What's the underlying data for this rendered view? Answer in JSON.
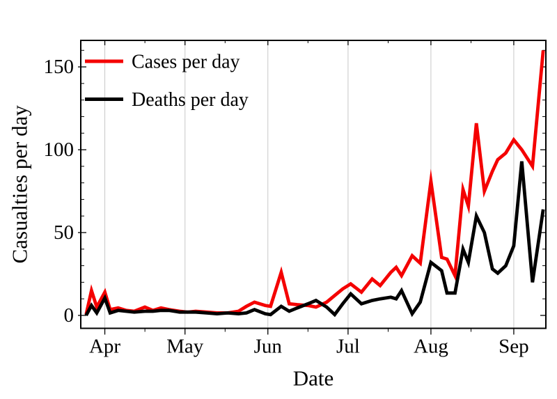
{
  "chart_data": {
    "type": "line",
    "title": "",
    "xlabel": "Date",
    "ylabel": "Casualties per day",
    "x_tick_labels": [
      "Apr",
      "May",
      "Jun",
      "Jul",
      "Aug",
      "Sep"
    ],
    "y_major_ticks": [
      0,
      50,
      100,
      150
    ],
    "y_minor_step": 10,
    "ylim": [
      -7.8,
      166
    ],
    "x_range": [
      "Mar 23",
      "Sep 13"
    ],
    "total_days": 174,
    "month_start_days": [
      9,
      39,
      70,
      100,
      131,
      162
    ],
    "x_minor_tick_days": [
      24,
      54,
      85,
      115,
      146
    ],
    "grid": "vertical-gridlines-at-months",
    "legend_position": "top-left-inside",
    "colors": {
      "cases": "#f40000",
      "deaths": "#000000",
      "gridline": "#c8c8c8",
      "frame": "#000000",
      "background": "#ffffff"
    },
    "dates": [
      "Mar 25",
      "Mar 27",
      "Mar 29",
      "Apr 1",
      "Apr 3",
      "Apr 6",
      "Apr 9",
      "Apr 12",
      "Apr 16",
      "Apr 19",
      "Apr 22",
      "Apr 25",
      "Apr 29",
      "May 2",
      "May 5",
      "May 9",
      "May 13",
      "May 17",
      "May 21",
      "May 24",
      "May 27",
      "May 31",
      "Jun 2",
      "Jun 6",
      "Jun 9",
      "Jun 12",
      "Jun 16",
      "Jun 19",
      "Jun 23",
      "Jun 26",
      "Jun 29",
      "Jul 2",
      "Jul 6",
      "Jul 10",
      "Jul 13",
      "Jul 17",
      "Jul 19",
      "Jul 21",
      "Jul 25",
      "Jul 28",
      "Aug 1",
      "Aug 5",
      "Aug 7",
      "Aug 10",
      "Aug 13",
      "Aug 15",
      "Aug 18",
      "Aug 21",
      "Aug 24",
      "Aug 26",
      "Aug 29",
      "Sep 1",
      "Sep 4",
      "Sep 8",
      "Sep 12"
    ],
    "day_offsets": [
      2,
      4,
      6,
      9,
      11,
      14,
      17,
      20,
      24,
      27,
      30,
      33,
      37,
      40,
      43,
      47,
      51,
      55,
      59,
      62,
      65,
      69,
      71,
      75,
      78,
      81,
      85,
      88,
      92,
      95,
      98,
      101,
      105,
      109,
      112,
      116,
      118,
      120,
      124,
      127,
      131,
      135,
      137,
      140,
      143,
      145,
      148,
      151,
      154,
      156,
      159,
      162,
      165,
      169,
      173
    ],
    "series": [
      {
        "name": "Cases per day",
        "color": "#f40000",
        "values": [
          0.5,
          15,
          5,
          14,
          3.5,
          4.5,
          3,
          2.5,
          5,
          3,
          4.5,
          3.5,
          2.5,
          2,
          2.5,
          2,
          1.5,
          1.5,
          2.5,
          5.5,
          8,
          6,
          5.5,
          26,
          7,
          6.5,
          6,
          5,
          8,
          12,
          16,
          19,
          14,
          22,
          18,
          26,
          29,
          24,
          36,
          31.5,
          81,
          35,
          34,
          24,
          76,
          66,
          116,
          75,
          87,
          94,
          98,
          106,
          100,
          90,
          160
        ]
      },
      {
        "name": "Deaths per day",
        "color": "#000000",
        "values": [
          0,
          6,
          1.5,
          10.5,
          1.5,
          3,
          2.5,
          2,
          2.5,
          2.5,
          3,
          3,
          2,
          2,
          2,
          1.5,
          1,
          1.5,
          1,
          1.5,
          3.5,
          1,
          0.5,
          5.5,
          2.5,
          4.5,
          7,
          9,
          5,
          0.5,
          7,
          13,
          7,
          9,
          10,
          11,
          10,
          15,
          1,
          8,
          32,
          27,
          13.5,
          13.5,
          40,
          32,
          60,
          50,
          28,
          25.5,
          30,
          42,
          93,
          20,
          64
        ]
      }
    ]
  }
}
